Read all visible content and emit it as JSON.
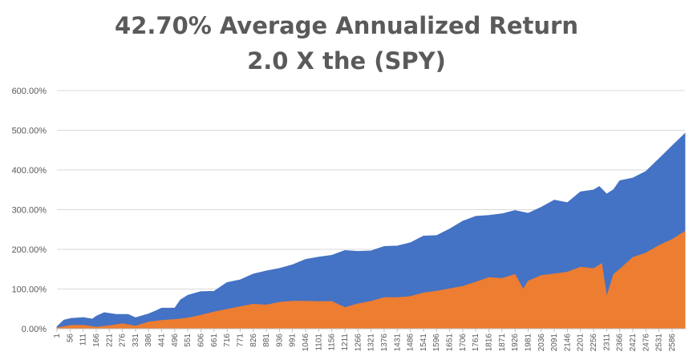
{
  "chart_data": {
    "type": "area",
    "title": "42.70% Average Annualized Return",
    "subtitle": "2.0 X the (SPY)",
    "xlabel": "",
    "ylabel": "",
    "ylim": [
      0,
      600
    ],
    "xlim": [
      1,
      2640
    ],
    "grid": true,
    "legend": "none",
    "y_ticks": [
      "0.00%",
      "100.00%",
      "200.00%",
      "300.00%",
      "400.00%",
      "500.00%",
      "600.00%"
    ],
    "y_tick_values": [
      0,
      100,
      200,
      300,
      400,
      500,
      600
    ],
    "x_ticks": [
      "1",
      "56",
      "111",
      "166",
      "221",
      "276",
      "331",
      "386",
      "441",
      "496",
      "551",
      "606",
      "661",
      "716",
      "771",
      "826",
      "881",
      "936",
      "991",
      "1046",
      "1101",
      "1156",
      "1211",
      "1266",
      "1321",
      "1376",
      "1431",
      "1486",
      "1541",
      "1596",
      "1651",
      "1706",
      "1761",
      "1816",
      "1871",
      "1926",
      "1981",
      "2036",
      "2091",
      "2146",
      "2201",
      "2256",
      "2311",
      "2366",
      "2421",
      "2476",
      "2531",
      "2586"
    ],
    "series": [
      {
        "color": "#4472c4",
        "x": [
          1,
          30,
          60,
          111,
          150,
          166,
          200,
          250,
          300,
          331,
          386,
          420,
          441,
          496,
          520,
          551,
          606,
          661,
          716,
          771,
          826,
          881,
          936,
          991,
          1046,
          1101,
          1156,
          1211,
          1266,
          1321,
          1376,
          1431,
          1486,
          1541,
          1596,
          1651,
          1706,
          1761,
          1816,
          1871,
          1926,
          1981,
          2036,
          2091,
          2146,
          2201,
          2256,
          2280,
          2311,
          2340,
          2366,
          2421,
          2476,
          2531,
          2586,
          2640
        ],
        "values": [
          5,
          20,
          28,
          28,
          25,
          32,
          40,
          38,
          35,
          28,
          40,
          48,
          50,
          55,
          75,
          85,
          90,
          95,
          115,
          125,
          135,
          145,
          150,
          160,
          170,
          178,
          185,
          190,
          190,
          195,
          200,
          205,
          220,
          235,
          240,
          250,
          262,
          275,
          285,
          295,
          300,
          300,
          305,
          318,
          322,
          338,
          355,
          358,
          348,
          360,
          378,
          390,
          405,
          430,
          458,
          492
        ]
      },
      {
        "color": "#ed7d31",
        "x": [
          1,
          60,
          111,
          166,
          221,
          276,
          331,
          386,
          441,
          496,
          551,
          606,
          661,
          716,
          771,
          826,
          881,
          936,
          991,
          1046,
          1101,
          1156,
          1211,
          1266,
          1321,
          1376,
          1431,
          1486,
          1541,
          1596,
          1651,
          1706,
          1761,
          1816,
          1871,
          1926,
          1960,
          1981,
          2036,
          2091,
          2146,
          2201,
          2256,
          2290,
          2311,
          2340,
          2366,
          2421,
          2476,
          2531,
          2586,
          2640
        ],
        "values": [
          2,
          8,
          10,
          5,
          8,
          12,
          8,
          15,
          20,
          22,
          28,
          35,
          42,
          48,
          55,
          60,
          62,
          65,
          68,
          70,
          72,
          70,
          55,
          65,
          70,
          75,
          78,
          80,
          88,
          95,
          100,
          108,
          115,
          125,
          130,
          140,
          100,
          120,
          130,
          135,
          140,
          150,
          155,
          160,
          80,
          140,
          155,
          175,
          195,
          210,
          232,
          245
        ]
      }
    ]
  }
}
